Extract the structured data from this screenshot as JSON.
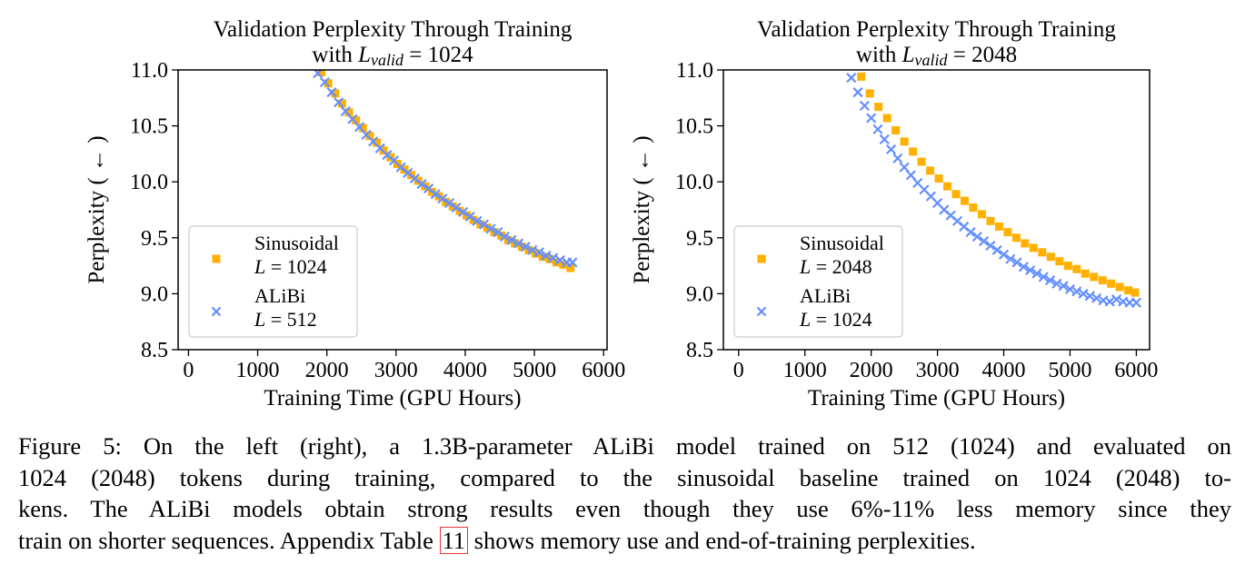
{
  "colors": {
    "sinusoidal": "#ffb000",
    "alibi": "#648fff",
    "ref_box": "#e53935"
  },
  "chart_data": [
    {
      "type": "scatter",
      "title": [
        "Validation Perplexity Through Training",
        "with L_valid = 1024"
      ],
      "title_line1": "Validation Perplexity Through Training",
      "title_with": "with ",
      "title_var_main": "L",
      "title_var_sub": "valid",
      "title_eq": " = 1024",
      "xlabel": "Training Time (GPU Hours)",
      "ylabel": "Perplexity ( ← )",
      "xlim": [
        -150,
        6050
      ],
      "ylim": [
        8.5,
        11.0
      ],
      "xticks": [
        "0",
        "1000",
        "2000",
        "3000",
        "4000",
        "5000",
        "6000"
      ],
      "xtick_values": [
        0,
        1000,
        2000,
        3000,
        4000,
        5000,
        6000
      ],
      "yticks": [
        "8.5",
        "9.0",
        "9.5",
        "10.0",
        "10.5",
        "11.0"
      ],
      "ytick_values": [
        8.5,
        9.0,
        9.5,
        10.0,
        10.5,
        11.0
      ],
      "grid": false,
      "legend_position": "lower-left",
      "series": [
        {
          "name": "Sinusoidal",
          "legend_sub": "L = 1024",
          "marker": "square",
          "color_key": "sinusoidal",
          "x": [
            1920,
            2020,
            2120,
            2220,
            2320,
            2420,
            2520,
            2620,
            2720,
            2820,
            2920,
            3020,
            3120,
            3220,
            3320,
            3420,
            3520,
            3620,
            3720,
            3820,
            3920,
            4020,
            4120,
            4220,
            4320,
            4420,
            4520,
            4620,
            4720,
            4820,
            4920,
            5020,
            5120,
            5220,
            5320,
            5420,
            5520
          ],
          "y": [
            10.98,
            10.88,
            10.79,
            10.7,
            10.62,
            10.55,
            10.48,
            10.41,
            10.35,
            10.28,
            10.22,
            10.16,
            10.11,
            10.06,
            10.01,
            9.96,
            9.91,
            9.87,
            9.82,
            9.78,
            9.74,
            9.7,
            9.66,
            9.62,
            9.59,
            9.55,
            9.52,
            9.48,
            9.45,
            9.42,
            9.39,
            9.36,
            9.33,
            9.31,
            9.28,
            9.26,
            9.23
          ]
        },
        {
          "name": "ALiBi",
          "legend_sub": "L = 512",
          "marker": "x",
          "color_key": "alibi",
          "x": [
            1870,
            1970,
            2070,
            2170,
            2270,
            2370,
            2470,
            2570,
            2670,
            2770,
            2870,
            2970,
            3070,
            3170,
            3270,
            3370,
            3470,
            3570,
            3670,
            3770,
            3870,
            3970,
            4070,
            4170,
            4270,
            4370,
            4470,
            4570,
            4670,
            4770,
            4870,
            4970,
            5070,
            5170,
            5270,
            5370,
            5470,
            5550
          ],
          "y": [
            10.97,
            10.89,
            10.8,
            10.71,
            10.63,
            10.56,
            10.49,
            10.42,
            10.36,
            10.3,
            10.24,
            10.19,
            10.13,
            10.08,
            10.03,
            9.98,
            9.94,
            9.89,
            9.85,
            9.81,
            9.77,
            9.73,
            9.69,
            9.65,
            9.62,
            9.58,
            9.55,
            9.51,
            9.48,
            9.45,
            9.42,
            9.39,
            9.37,
            9.34,
            9.32,
            9.3,
            9.28,
            9.28
          ]
        }
      ]
    },
    {
      "type": "scatter",
      "title": [
        "Validation Perplexity Through Training",
        "with L_valid = 2048"
      ],
      "title_line1": "Validation Perplexity Through Training",
      "title_with": "with ",
      "title_var_main": "L",
      "title_var_sub": "valid",
      "title_eq": " = 2048",
      "xlabel": "Training Time (GPU Hours)",
      "ylabel": "Perplexity ( ← )",
      "xlim": [
        -230,
        6200
      ],
      "ylim": [
        8.5,
        11.0
      ],
      "xticks": [
        "0",
        "1000",
        "2000",
        "3000",
        "4000",
        "5000",
        "6000"
      ],
      "xtick_values": [
        0,
        1000,
        2000,
        3000,
        4000,
        5000,
        6000
      ],
      "yticks": [
        "8.5",
        "9.0",
        "9.5",
        "10.0",
        "10.5",
        "11.0"
      ],
      "ytick_values": [
        8.5,
        9.0,
        9.5,
        10.0,
        10.5,
        11.0
      ],
      "grid": false,
      "legend_position": "lower-left",
      "series": [
        {
          "name": "Sinusoidal",
          "legend_sub": "L = 2048",
          "marker": "square",
          "color_key": "sinusoidal",
          "x": [
            1850,
            1980,
            2110,
            2240,
            2370,
            2500,
            2630,
            2760,
            2890,
            3020,
            3150,
            3280,
            3410,
            3540,
            3670,
            3800,
            3930,
            4060,
            4190,
            4320,
            4450,
            4580,
            4710,
            4840,
            4970,
            5100,
            5230,
            5360,
            5490,
            5620,
            5750,
            5880,
            5980
          ],
          "y": [
            10.94,
            10.79,
            10.67,
            10.57,
            10.46,
            10.36,
            10.27,
            10.18,
            10.1,
            10.03,
            9.96,
            9.89,
            9.83,
            9.77,
            9.71,
            9.65,
            9.6,
            9.55,
            9.5,
            9.45,
            9.41,
            9.37,
            9.33,
            9.29,
            9.25,
            9.22,
            9.18,
            9.15,
            9.12,
            9.09,
            9.06,
            9.03,
            9.01
          ]
        },
        {
          "name": "ALiBi",
          "legend_sub": "L = 1024",
          "marker": "x",
          "color_key": "alibi",
          "x": [
            1700,
            1800,
            1900,
            2000,
            2100,
            2200,
            2300,
            2400,
            2500,
            2600,
            2700,
            2800,
            2900,
            3000,
            3100,
            3200,
            3300,
            3400,
            3500,
            3600,
            3700,
            3800,
            3900,
            4000,
            4100,
            4200,
            4300,
            4400,
            4500,
            4600,
            4700,
            4800,
            4900,
            5000,
            5100,
            5200,
            5300,
            5400,
            5500,
            5600,
            5700,
            5800,
            5900,
            6000
          ],
          "y": [
            10.93,
            10.8,
            10.68,
            10.57,
            10.47,
            10.38,
            10.29,
            10.21,
            10.13,
            10.06,
            9.99,
            9.93,
            9.87,
            9.81,
            9.75,
            9.7,
            9.65,
            9.6,
            9.55,
            9.51,
            9.47,
            9.43,
            9.39,
            9.35,
            9.31,
            9.28,
            9.24,
            9.21,
            9.18,
            9.15,
            9.12,
            9.09,
            9.07,
            9.04,
            9.02,
            9.0,
            8.98,
            8.96,
            8.94,
            8.93,
            8.95,
            8.93,
            8.92,
            8.92
          ]
        }
      ]
    }
  ],
  "caption": {
    "line1": "Figure 5: On the left (right), a 1.3B-parameter ALiBi model trained on 512 (1024) and evaluated on",
    "line2": "1024 (2048) tokens during training, compared to the sinusoidal baseline trained on 1024 (2048) to-",
    "line3": "kens. The ALiBi models obtain strong results even though they use 6%-11% less memory since they",
    "line4_before": "train on shorter sequences. Appendix Table ",
    "line4_ref": "11",
    "line4_after": " shows memory use and end-of-training perplexities."
  }
}
